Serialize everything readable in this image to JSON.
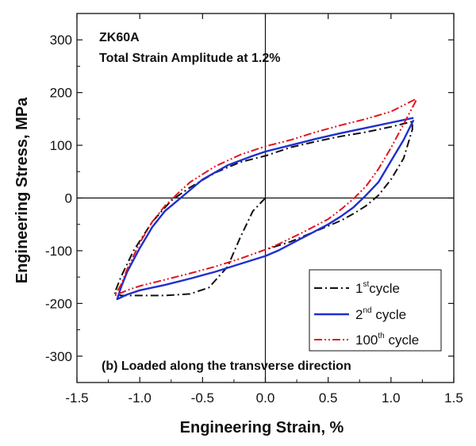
{
  "chart_data": {
    "type": "line",
    "title": "",
    "xlabel": "Engineering Strain, %",
    "ylabel": "Engineering Stress, MPa",
    "xlim": [
      -1.5,
      1.5
    ],
    "ylim": [
      -350,
      350
    ],
    "xticks": [
      "-1.5",
      "-1.0",
      "-0.5",
      "0.0",
      "0.5",
      "1.0",
      "1.5"
    ],
    "xtick_values": [
      -1.5,
      -1.0,
      -0.5,
      0.0,
      0.5,
      1.0,
      1.5
    ],
    "yticks": [
      "300",
      "200",
      "100",
      "0",
      "-100",
      "-200",
      "-300"
    ],
    "ytick_values": [
      300,
      200,
      100,
      0,
      -100,
      -200,
      -300
    ],
    "grid": false,
    "reference_lines": [
      "x = 0",
      "y = 0"
    ],
    "annotations": {
      "material": "ZK60A",
      "condition": "Total Strain Amplitude at 1.2%",
      "panel": "(b) Loaded along the transverse direction"
    },
    "legend": {
      "position": "bottom-right",
      "entries": [
        {
          "base": "1",
          "sup": "st",
          "tail": "cycle"
        },
        {
          "base": "2",
          "sup": "nd",
          "tail": " cycle"
        },
        {
          "base": "100",
          "sup": "th",
          "tail": " cycle"
        }
      ]
    },
    "series": [
      {
        "name": "1st cycle",
        "color": "#111111",
        "style": "dash-dot",
        "x": [
          0.0,
          -0.1,
          -0.2,
          -0.3,
          -0.45,
          -0.6,
          -0.8,
          -1.0,
          -1.15,
          -1.2,
          -1.15,
          -1.05,
          -0.9,
          -0.75,
          -0.6,
          -0.4,
          -0.2,
          0.0,
          0.2,
          0.4,
          0.6,
          0.8,
          1.0,
          1.17,
          1.17,
          1.1,
          1.0,
          0.9,
          0.8,
          0.7,
          0.6,
          0.4,
          0.2,
          0.0
        ],
        "y": [
          0,
          -25,
          -75,
          -130,
          -170,
          -182,
          -185,
          -185,
          -185,
          -180,
          -150,
          -100,
          -45,
          -5,
          20,
          48,
          68,
          80,
          96,
          107,
          117,
          125,
          135,
          145,
          130,
          75,
          35,
          5,
          -15,
          -30,
          -43,
          -63,
          -83,
          -98
        ]
      },
      {
        "name": "2nd cycle",
        "color": "#1f2fd0",
        "style": "solid",
        "x": [
          1.18,
          1.1,
          1.0,
          0.9,
          0.8,
          0.7,
          0.6,
          0.5,
          0.3,
          0.1,
          0.0,
          -0.2,
          -0.4,
          -0.6,
          -0.8,
          -1.0,
          -1.1,
          -1.18,
          -1.15,
          -1.1,
          -1.0,
          -0.9,
          -0.8,
          -0.7,
          -0.6,
          -0.5,
          -0.3,
          -0.1,
          0.0,
          0.2,
          0.4,
          0.6,
          0.8,
          1.0,
          1.18
        ],
        "y": [
          148,
          110,
          70,
          30,
          5,
          -18,
          -35,
          -50,
          -75,
          -100,
          -110,
          -125,
          -140,
          -153,
          -165,
          -175,
          -183,
          -192,
          -170,
          -140,
          -95,
          -55,
          -25,
          -5,
          15,
          35,
          62,
          80,
          88,
          100,
          112,
          123,
          133,
          143,
          152
        ]
      },
      {
        "name": "100th cycle",
        "color": "#e0141e",
        "style": "dash-dot-dot",
        "x": [
          1.2,
          1.1,
          1.0,
          0.9,
          0.8,
          0.7,
          0.6,
          0.5,
          0.3,
          0.1,
          0.0,
          -0.2,
          -0.4,
          -0.6,
          -0.8,
          -1.0,
          -1.1,
          -1.2,
          -1.15,
          -1.1,
          -1.0,
          -0.9,
          -0.8,
          -0.7,
          -0.6,
          -0.4,
          -0.2,
          0.0,
          0.2,
          0.4,
          0.6,
          0.8,
          1.0,
          1.2
        ],
        "y": [
          185,
          140,
          95,
          55,
          22,
          -2,
          -22,
          -40,
          -65,
          -88,
          -98,
          -115,
          -130,
          -143,
          -155,
          -167,
          -175,
          -185,
          -165,
          -135,
          -85,
          -45,
          -15,
          8,
          30,
          60,
          82,
          98,
          110,
          125,
          138,
          150,
          164,
          188
        ]
      }
    ]
  }
}
